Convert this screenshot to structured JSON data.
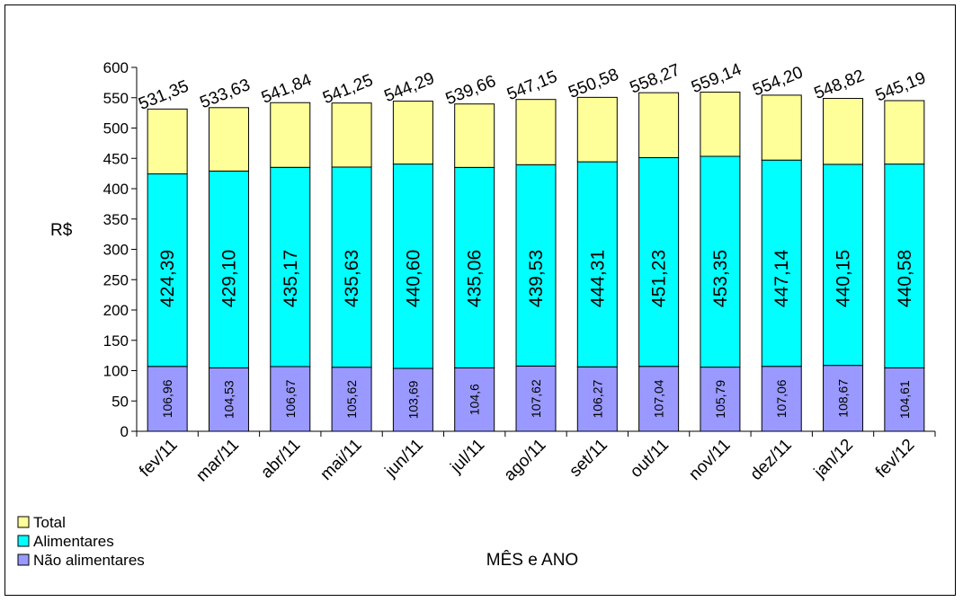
{
  "chart_data": {
    "type": "bar",
    "stacked": true,
    "categories": [
      "fev/11",
      "mar/11",
      "abr/11",
      "mai/11",
      "jun/11",
      "jul/11",
      "ago/11",
      "set/11",
      "out/11",
      "nov/11",
      "dez/11",
      "jan/12",
      "fev/12"
    ],
    "series": [
      {
        "name": "Não alimentares",
        "color": "#9999ff",
        "values": [
          106.96,
          104.53,
          106.67,
          105.62,
          103.69,
          104.6,
          107.62,
          106.27,
          107.04,
          105.79,
          107.06,
          108.67,
          104.61
        ],
        "labels": [
          "106,96",
          "104,53",
          "106,67",
          "105,62",
          "103,69",
          "104,6",
          "107,62",
          "106,27",
          "107,04",
          "105,79",
          "107,06",
          "108,67",
          "104,61"
        ]
      },
      {
        "name": "Alimentares",
        "color": "#00ffff",
        "values": [
          424.39,
          429.1,
          435.17,
          435.63,
          440.6,
          435.06,
          439.53,
          444.31,
          451.23,
          453.35,
          447.14,
          440.15,
          440.58
        ],
        "labels": [
          "424,39",
          "429,10",
          "435,17",
          "435,63",
          "440,60",
          "435,06",
          "439,53",
          "444,31",
          "451,23",
          "453,35",
          "447,14",
          "440,15",
          "440,58"
        ]
      },
      {
        "name": "Total",
        "color": "#ffff99",
        "values": [
          531.35,
          533.63,
          541.84,
          541.25,
          544.29,
          539.66,
          547.15,
          550.58,
          558.27,
          559.14,
          554.2,
          548.82,
          545.19
        ],
        "labels": [
          "531,35",
          "533,63",
          "541,84",
          "541,25",
          "544,29",
          "539,66",
          "547,15",
          "550,58",
          "558,27",
          "559,14",
          "554,20",
          "548,82",
          "545,19"
        ]
      }
    ],
    "ylim": [
      0,
      600
    ],
    "yticks": [
      0,
      50,
      100,
      150,
      200,
      250,
      300,
      350,
      400,
      450,
      500,
      550,
      600
    ],
    "xlabel": "MÊS e ANO",
    "ylabel": "R$",
    "grid": false,
    "legend": "bottom-left",
    "legend_order": [
      "Total",
      "Alimentares",
      "Não alimentares"
    ]
  }
}
